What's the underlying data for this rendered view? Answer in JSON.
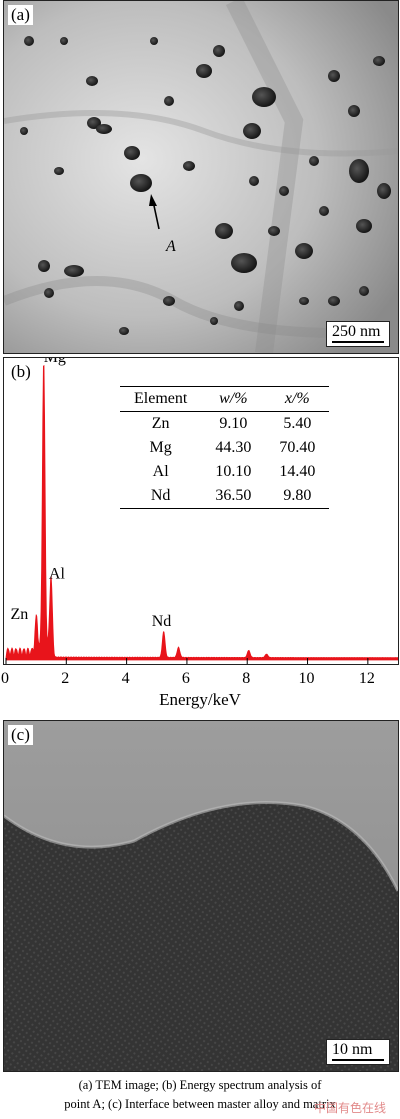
{
  "panels": {
    "a": {
      "label": "(a)",
      "scale_text": "250 nm",
      "point_label": "A"
    },
    "b": {
      "label": "(b)"
    },
    "c": {
      "label": "(c)",
      "scale_text": "10 nm"
    }
  },
  "eds_table": {
    "headers": [
      "Element",
      "w/%",
      "x/%"
    ],
    "rows": [
      [
        "Zn",
        "9.10",
        "5.40"
      ],
      [
        "Mg",
        "44.30",
        "70.40"
      ],
      [
        "Al",
        "10.10",
        "14.40"
      ],
      [
        "Nd",
        "36.50",
        "9.80"
      ]
    ]
  },
  "chart_data": {
    "type": "line",
    "xlabel": "Energy/keV",
    "ylabel": "",
    "title": "",
    "xlim": [
      0,
      13
    ],
    "x_ticks": [
      "0",
      "2",
      "4",
      "6",
      "8",
      "10",
      "12"
    ],
    "peaks": [
      {
        "label": "Mg",
        "energy": 1.25,
        "relative_height": 1.0
      },
      {
        "label": "Al",
        "energy": 1.49,
        "relative_height": 0.26
      },
      {
        "label": "Zn",
        "energy": 1.01,
        "relative_height": 0.12
      },
      {
        "label": "Nd",
        "energy": 5.23,
        "relative_height": 0.09
      },
      {
        "label": "",
        "energy": 5.72,
        "relative_height": 0.035
      },
      {
        "label": "",
        "energy": 8.05,
        "relative_height": 0.025
      },
      {
        "label": "",
        "energy": 8.64,
        "relative_height": 0.012
      }
    ],
    "line_color": "#e8141b"
  },
  "caption": {
    "line1": "(a) TEM image; (b) Energy spectrum analysis of",
    "line2": "point A; (c) Interface between master alloy and matrix"
  },
  "watermark": "中国有色在线"
}
